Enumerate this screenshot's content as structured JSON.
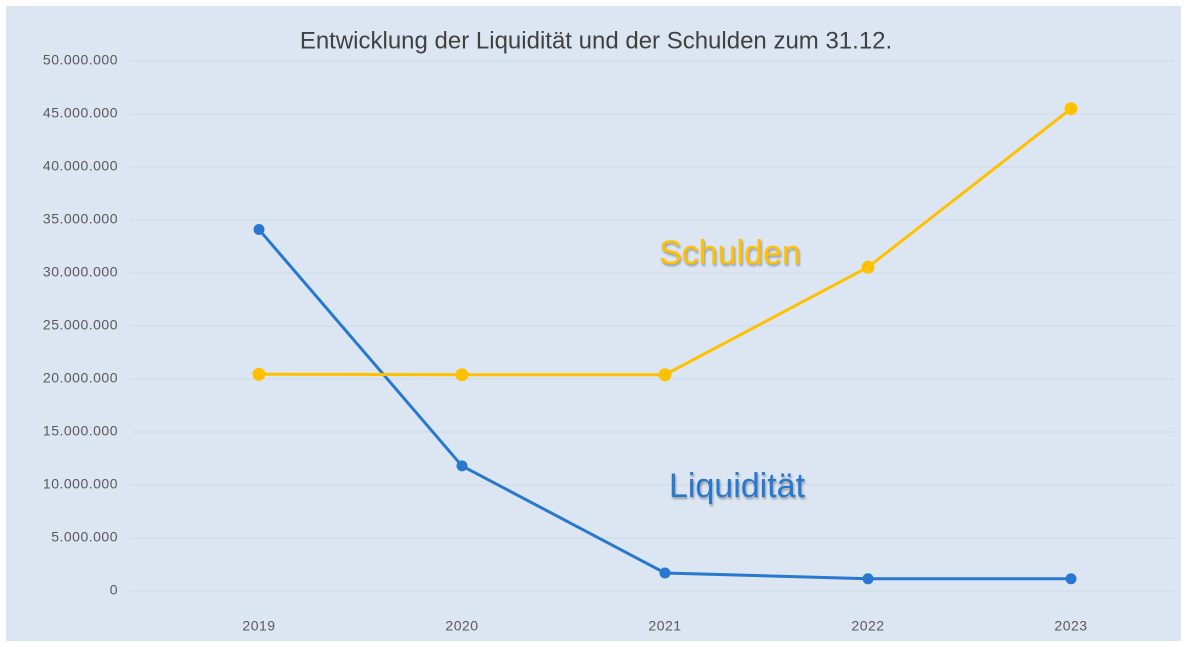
{
  "chart_data": {
    "type": "line",
    "title": "Entwicklung der Liquidität und der Schulden zum 31.12.",
    "categories": [
      "2019",
      "2020",
      "2021",
      "2022",
      "2023"
    ],
    "series": [
      {
        "name": "Liquidität",
        "color": "#2878d0",
        "values": [
          34100000,
          11800000,
          1700000,
          1150000,
          1150000
        ]
      },
      {
        "name": "Schulden",
        "color": "#ffc000",
        "values": [
          20450000,
          20400000,
          20400000,
          30550000,
          45500000
        ]
      }
    ],
    "ylim": [
      0,
      50000000
    ],
    "yticks": [
      0,
      {
        "value": 5000000,
        "label": "5.000.000"
      },
      {
        "value": 10000000,
        "label": "10.000.000"
      },
      {
        "value": 15000000,
        "label": "15.000.000"
      },
      {
        "value": 20000000,
        "label": "20.000.000"
      },
      {
        "value": 25000000,
        "label": "25.000.000"
      },
      {
        "value": 30000000,
        "label": "30.000.000"
      },
      {
        "value": 35000000,
        "label": "35.000.000"
      },
      {
        "value": 40000000,
        "label": "40.000.000"
      },
      {
        "value": 45000000,
        "label": "45.000.000"
      },
      {
        "value": 50000000,
        "label": "50.000.000"
      }
    ],
    "grid": true
  }
}
